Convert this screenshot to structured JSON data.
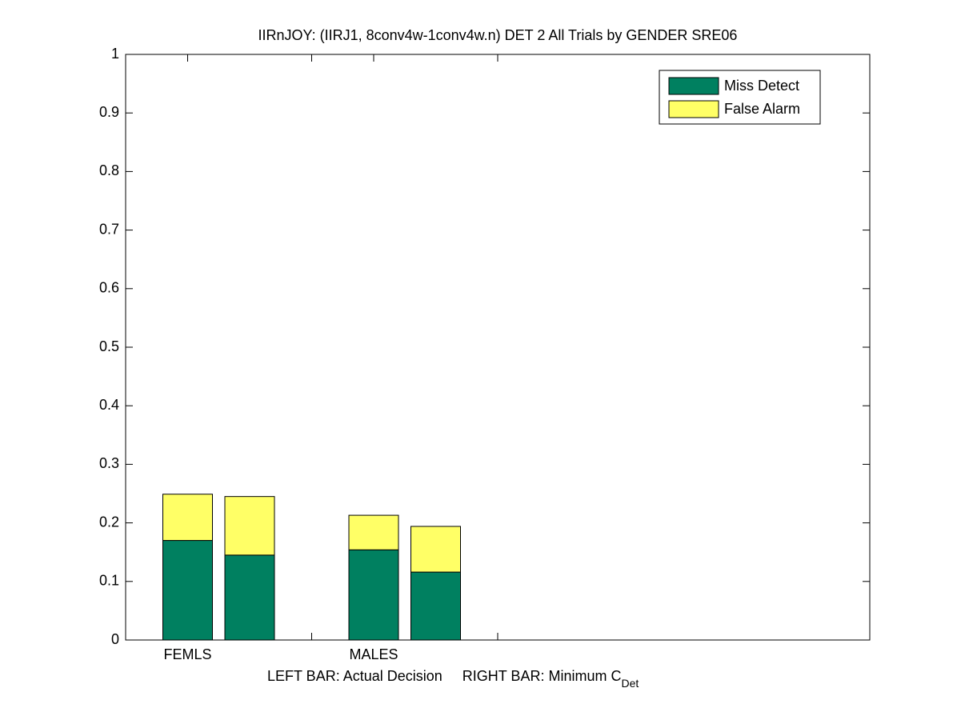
{
  "chart_data": {
    "type": "bar",
    "stacked": true,
    "title": "IIRnJOY: (IIRJ1, 8conv4w-1conv4w.n) DET 2 All Trials by GENDER SRE06",
    "xlabel": {
      "text": "LEFT BAR: Actual Decision     RIGHT BAR: Minimum C",
      "subscript": "Det"
    },
    "x": [
      1,
      2,
      4,
      5
    ],
    "series": [
      {
        "name": "Miss Detect",
        "color": "#008060",
        "values": [
          0.17,
          0.145,
          0.154,
          0.116
        ]
      },
      {
        "name": "False Alarm",
        "color": "#ffff66",
        "values": [
          0.079,
          0.1,
          0.059,
          0.078
        ]
      }
    ],
    "bar_width": 0.8,
    "xlim": [
      0,
      12
    ],
    "xticks": [
      {
        "value": 1,
        "label": "FEMLS"
      },
      {
        "value": 3,
        "label": null
      },
      {
        "value": 4,
        "label": "MALES"
      },
      {
        "value": 6,
        "label": null
      }
    ],
    "ylim": [
      0,
      1
    ],
    "yticks": [
      0,
      0.1,
      0.2,
      0.3,
      0.4,
      0.5,
      0.6,
      0.7,
      0.8,
      0.9,
      1
    ],
    "grid": false,
    "legend": "northeast"
  }
}
